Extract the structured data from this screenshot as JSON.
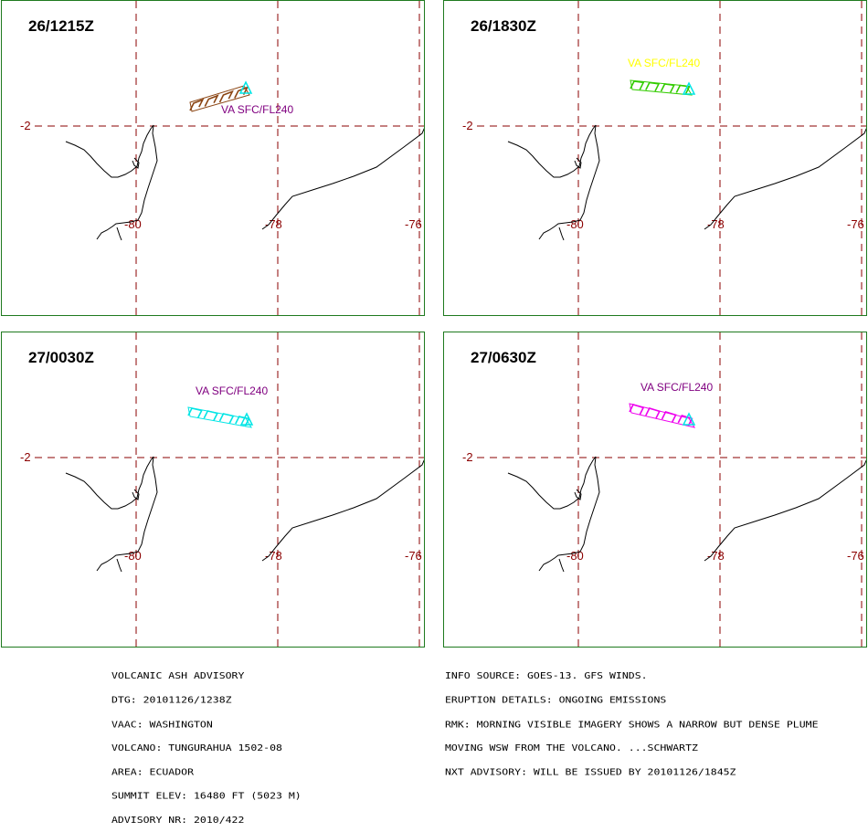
{
  "map_labels": {
    "lat_tick": "-2",
    "lon_ticks": [
      "-80",
      "-78",
      "-76"
    ],
    "cloud_label": "VA SFC/FL240"
  },
  "panels": [
    {
      "time": "26/1215Z",
      "label_color": "#800080",
      "hatch_color": "#8b4513",
      "outline_color": "#00e5e5"
    },
    {
      "time": "26/1830Z",
      "label_color": "#ffff00",
      "hatch_color": "#33cc00",
      "outline_color": "#00e5e5"
    },
    {
      "time": "27/0030Z",
      "label_color": "#800080",
      "hatch_color": "#00e5e5",
      "outline_color": "#00e5e5"
    },
    {
      "time": "27/0630Z",
      "label_color": "#800080",
      "hatch_color": "#ee00ee",
      "outline_color": "#00e5e5"
    }
  ],
  "advisory_left": [
    "VOLCANIC ASH ADVISORY",
    "DTG: 20101126/1238Z",
    "VAAC: WASHINGTON",
    "VOLCANO: TUNGURAHUA 1502-08",
    "AREA: ECUADOR",
    "SUMMIT ELEV: 16480 FT (5023 M)",
    "ADVISORY NR: 2010/422"
  ],
  "advisory_right": [
    "INFO SOURCE: GOES-13. GFS WINDS.",
    "ERUPTION DETAILS: ONGOING EMISSIONS",
    "RMK: MORNING VISIBLE IMAGERY SHOWS A NARROW BUT DENSE PLUME",
    "MOVING WSW FROM THE VOLCANO. ...SCHWARTZ",
    "NXT ADVISORY: WILL BE ISSUED BY 20101126/1845Z"
  ],
  "colors": {
    "panel_border": "#1f7a1f",
    "grid": "#8b0000",
    "coast": "#000000"
  }
}
